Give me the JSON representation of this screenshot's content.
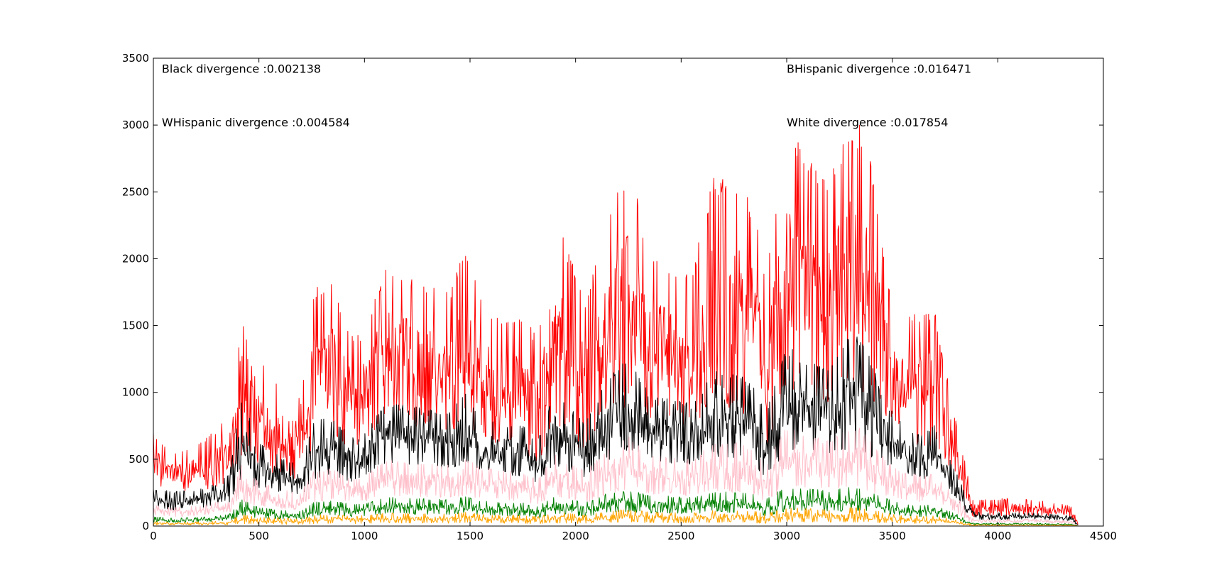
{
  "chart_data": {
    "type": "line",
    "title": "",
    "xlabel": "",
    "ylabel": "",
    "xlim": [
      0,
      4500
    ],
    "ylim": [
      0,
      3500
    ],
    "x_ticks": [
      0,
      500,
      1000,
      1500,
      2000,
      2500,
      3000,
      3500,
      4000,
      4500
    ],
    "y_ticks": [
      0,
      500,
      1000,
      1500,
      2000,
      2500,
      3000,
      3500
    ],
    "grid": false,
    "legend": "none",
    "annotations": [
      {
        "text": "Black divergence :0.002138",
        "x": 40,
        "y": 3390
      },
      {
        "text": "WHispanic divergence :0.004584",
        "x": 40,
        "y": 2990
      },
      {
        "text": "BHispanic divergence :0.016471",
        "x": 3000,
        "y": 3390
      },
      {
        "text": "White divergence :0.017854",
        "x": 3000,
        "y": 2990
      }
    ],
    "series": [
      {
        "color": "#ff0000",
        "envelope_x": [
          0,
          100,
          200,
          300,
          360,
          420,
          500,
          600,
          700,
          760,
          850,
          950,
          1000,
          1100,
          1200,
          1300,
          1400,
          1480,
          1550,
          1650,
          1750,
          1820,
          1900,
          1980,
          2050,
          2150,
          2250,
          2350,
          2450,
          2550,
          2650,
          2750,
          2850,
          2900,
          3000,
          3100,
          3200,
          3300,
          3350,
          3400,
          3450,
          3500,
          3550,
          3600,
          3650,
          3700,
          3750,
          3800,
          3850,
          3880,
          3950,
          4050,
          4150,
          4250,
          4350,
          4380
        ],
        "envelope_low": [
          300,
          250,
          260,
          280,
          320,
          520,
          420,
          380,
          340,
          560,
          620,
          520,
          580,
          820,
          760,
          720,
          700,
          780,
          660,
          600,
          580,
          440,
          760,
          640,
          520,
          820,
          900,
          800,
          780,
          700,
          900,
          860,
          760,
          560,
          1000,
          1000,
          920,
          960,
          940,
          880,
          820,
          760,
          700,
          580,
          560,
          600,
          500,
          300,
          150,
          70,
          70,
          80,
          80,
          70,
          60,
          0
        ],
        "envelope_high": [
          700,
          550,
          620,
          720,
          900,
          2150,
          1300,
          1050,
          950,
          1800,
          1850,
          1400,
          1500,
          1950,
          1900,
          1800,
          1750,
          2100,
          1700,
          1550,
          1600,
          1400,
          2400,
          2000,
          1700,
          2300,
          2750,
          2100,
          2000,
          1900,
          2600,
          2700,
          2400,
          1800,
          3100,
          2800,
          2600,
          3100,
          3000,
          2800,
          2200,
          1700,
          1500,
          1650,
          1600,
          1650,
          1200,
          800,
          450,
          200,
          200,
          210,
          200,
          180,
          150,
          20
        ]
      },
      {
        "color": "#000000",
        "envelope_x": [
          0,
          100,
          200,
          300,
          360,
          420,
          500,
          600,
          700,
          760,
          850,
          950,
          1000,
          1100,
          1200,
          1300,
          1400,
          1480,
          1550,
          1650,
          1750,
          1820,
          1900,
          1980,
          2050,
          2150,
          2250,
          2350,
          2450,
          2550,
          2650,
          2750,
          2850,
          2900,
          3000,
          3100,
          3200,
          3300,
          3350,
          3400,
          3450,
          3500,
          3550,
          3600,
          3650,
          3700,
          3750,
          3800,
          3850,
          3880,
          3950,
          4050,
          4150,
          4250,
          4350,
          4380
        ],
        "envelope_low": [
          140,
          120,
          130,
          160,
          180,
          340,
          280,
          240,
          220,
          330,
          380,
          320,
          360,
          470,
          450,
          440,
          420,
          460,
          400,
          380,
          370,
          300,
          440,
          400,
          340,
          480,
          540,
          480,
          470,
          440,
          520,
          500,
          450,
          360,
          560,
          560,
          520,
          560,
          540,
          500,
          460,
          420,
          400,
          360,
          340,
          360,
          300,
          200,
          100,
          50,
          45,
          50,
          50,
          45,
          40,
          0
        ],
        "envelope_high": [
          280,
          260,
          270,
          320,
          400,
          1000,
          640,
          520,
          460,
          800,
          820,
          660,
          700,
          940,
          900,
          880,
          860,
          1000,
          820,
          780,
          760,
          640,
          1000,
          880,
          780,
          1100,
          1280,
          1000,
          960,
          920,
          1150,
          1180,
          1050,
          850,
          1350,
          1250,
          1200,
          1450,
          1400,
          1250,
          1000,
          860,
          760,
          720,
          700,
          760,
          560,
          420,
          230,
          110,
          100,
          100,
          100,
          90,
          75,
          10
        ]
      },
      {
        "color": "#ffc0cb",
        "envelope_x": [
          0,
          100,
          200,
          300,
          360,
          420,
          500,
          600,
          700,
          760,
          850,
          950,
          1000,
          1100,
          1200,
          1300,
          1400,
          1480,
          1550,
          1650,
          1750,
          1820,
          1900,
          1980,
          2050,
          2150,
          2250,
          2350,
          2450,
          2550,
          2650,
          2750,
          2850,
          2900,
          3000,
          3100,
          3200,
          3300,
          3350,
          3400,
          3450,
          3500,
          3550,
          3600,
          3650,
          3700,
          3750,
          3800,
          3850,
          3880,
          3950,
          4050,
          4150,
          4250,
          4350,
          4380
        ],
        "envelope_low": [
          80,
          70,
          75,
          90,
          100,
          170,
          150,
          130,
          120,
          170,
          190,
          170,
          180,
          230,
          220,
          215,
          210,
          230,
          200,
          190,
          185,
          150,
          220,
          200,
          170,
          240,
          270,
          240,
          235,
          220,
          260,
          250,
          225,
          180,
          280,
          280,
          260,
          280,
          270,
          250,
          230,
          210,
          200,
          180,
          170,
          180,
          150,
          100,
          50,
          25,
          22,
          25,
          25,
          22,
          20,
          0
        ],
        "envelope_high": [
          160,
          140,
          150,
          180,
          220,
          480,
          330,
          280,
          250,
          420,
          430,
          350,
          370,
          500,
          480,
          470,
          460,
          520,
          440,
          420,
          410,
          350,
          540,
          470,
          420,
          580,
          680,
          540,
          520,
          500,
          620,
          640,
          560,
          460,
          760,
          680,
          640,
          760,
          740,
          660,
          540,
          460,
          410,
          390,
          380,
          400,
          300,
          230,
          130,
          60,
          55,
          55,
          55,
          50,
          40,
          5
        ]
      },
      {
        "color": "#008000",
        "envelope_x": [
          0,
          100,
          200,
          300,
          360,
          420,
          500,
          600,
          700,
          760,
          850,
          950,
          1000,
          1100,
          1200,
          1300,
          1400,
          1480,
          1550,
          1650,
          1750,
          1820,
          1900,
          1980,
          2050,
          2150,
          2250,
          2350,
          2450,
          2550,
          2650,
          2750,
          2850,
          2900,
          3000,
          3100,
          3200,
          3300,
          3350,
          3400,
          3450,
          3500,
          3550,
          3600,
          3650,
          3700,
          3750,
          3800,
          3850,
          3880,
          3950,
          4050,
          4150,
          4250,
          4350,
          4380
        ],
        "envelope_low": [
          30,
          28,
          30,
          35,
          40,
          70,
          60,
          52,
          48,
          68,
          76,
          68,
          72,
          92,
          88,
          86,
          84,
          92,
          80,
          76,
          74,
          60,
          88,
          80,
          68,
          96,
          108,
          96,
          94,
          88,
          104,
          100,
          90,
          72,
          112,
          112,
          104,
          112,
          108,
          100,
          92,
          84,
          80,
          72,
          68,
          72,
          60,
          40,
          20,
          10,
          9,
          10,
          10,
          9,
          8,
          0
        ],
        "envelope_high": [
          70,
          60,
          65,
          75,
          90,
          200,
          140,
          120,
          110,
          180,
          190,
          160,
          170,
          220,
          210,
          205,
          200,
          225,
          190,
          180,
          175,
          150,
          230,
          200,
          180,
          245,
          270,
          230,
          225,
          215,
          260,
          265,
          240,
          200,
          300,
          280,
          265,
          300,
          290,
          265,
          220,
          190,
          170,
          160,
          155,
          165,
          125,
          95,
          55,
          25,
          22,
          22,
          22,
          20,
          16,
          2
        ]
      },
      {
        "color": "#ffa500",
        "envelope_x": [
          0,
          100,
          200,
          300,
          360,
          420,
          500,
          600,
          700,
          760,
          850,
          950,
          1000,
          1100,
          1200,
          1300,
          1400,
          1480,
          1550,
          1650,
          1750,
          1820,
          1900,
          1980,
          2050,
          2150,
          2250,
          2350,
          2450,
          2550,
          2650,
          2750,
          2850,
          2900,
          3000,
          3100,
          3200,
          3300,
          3350,
          3400,
          3450,
          3500,
          3550,
          3600,
          3650,
          3700,
          3750,
          3800,
          3850,
          3880,
          3950,
          4050,
          4150,
          4250,
          4350,
          4380
        ],
        "envelope_low": [
          8,
          7,
          8,
          9,
          10,
          18,
          15,
          13,
          12,
          17,
          19,
          17,
          18,
          23,
          22,
          21,
          21,
          23,
          20,
          19,
          18,
          15,
          22,
          20,
          17,
          24,
          27,
          24,
          23,
          22,
          26,
          25,
          22,
          18,
          28,
          28,
          26,
          28,
          27,
          25,
          23,
          21,
          20,
          18,
          17,
          18,
          15,
          10,
          5,
          3,
          2,
          3,
          3,
          2,
          2,
          0
        ],
        "envelope_high": [
          35,
          30,
          32,
          38,
          45,
          90,
          70,
          60,
          55,
          85,
          90,
          75,
          80,
          100,
          96,
          94,
          92,
          104,
          88,
          84,
          82,
          70,
          106,
          94,
          84,
          114,
          126,
          108,
          104,
          100,
          120,
          124,
          112,
          94,
          140,
          132,
          124,
          140,
          136,
          124,
          104,
          90,
          82,
          78,
          76,
          80,
          62,
          48,
          28,
          12,
          11,
          11,
          11,
          10,
          8,
          1
        ]
      }
    ]
  }
}
